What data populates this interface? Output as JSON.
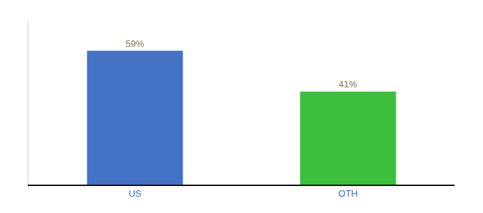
{
  "chart_data": {
    "type": "bar",
    "categories": [
      "US",
      "OTH"
    ],
    "values": [
      59,
      41
    ],
    "value_labels": [
      "59%",
      "41%"
    ],
    "colors": [
      "#4472C4",
      "#3DBF3D"
    ],
    "ylim": [
      0,
      72
    ],
    "data_labels": true,
    "tick_labels": "x",
    "grid": false
  }
}
